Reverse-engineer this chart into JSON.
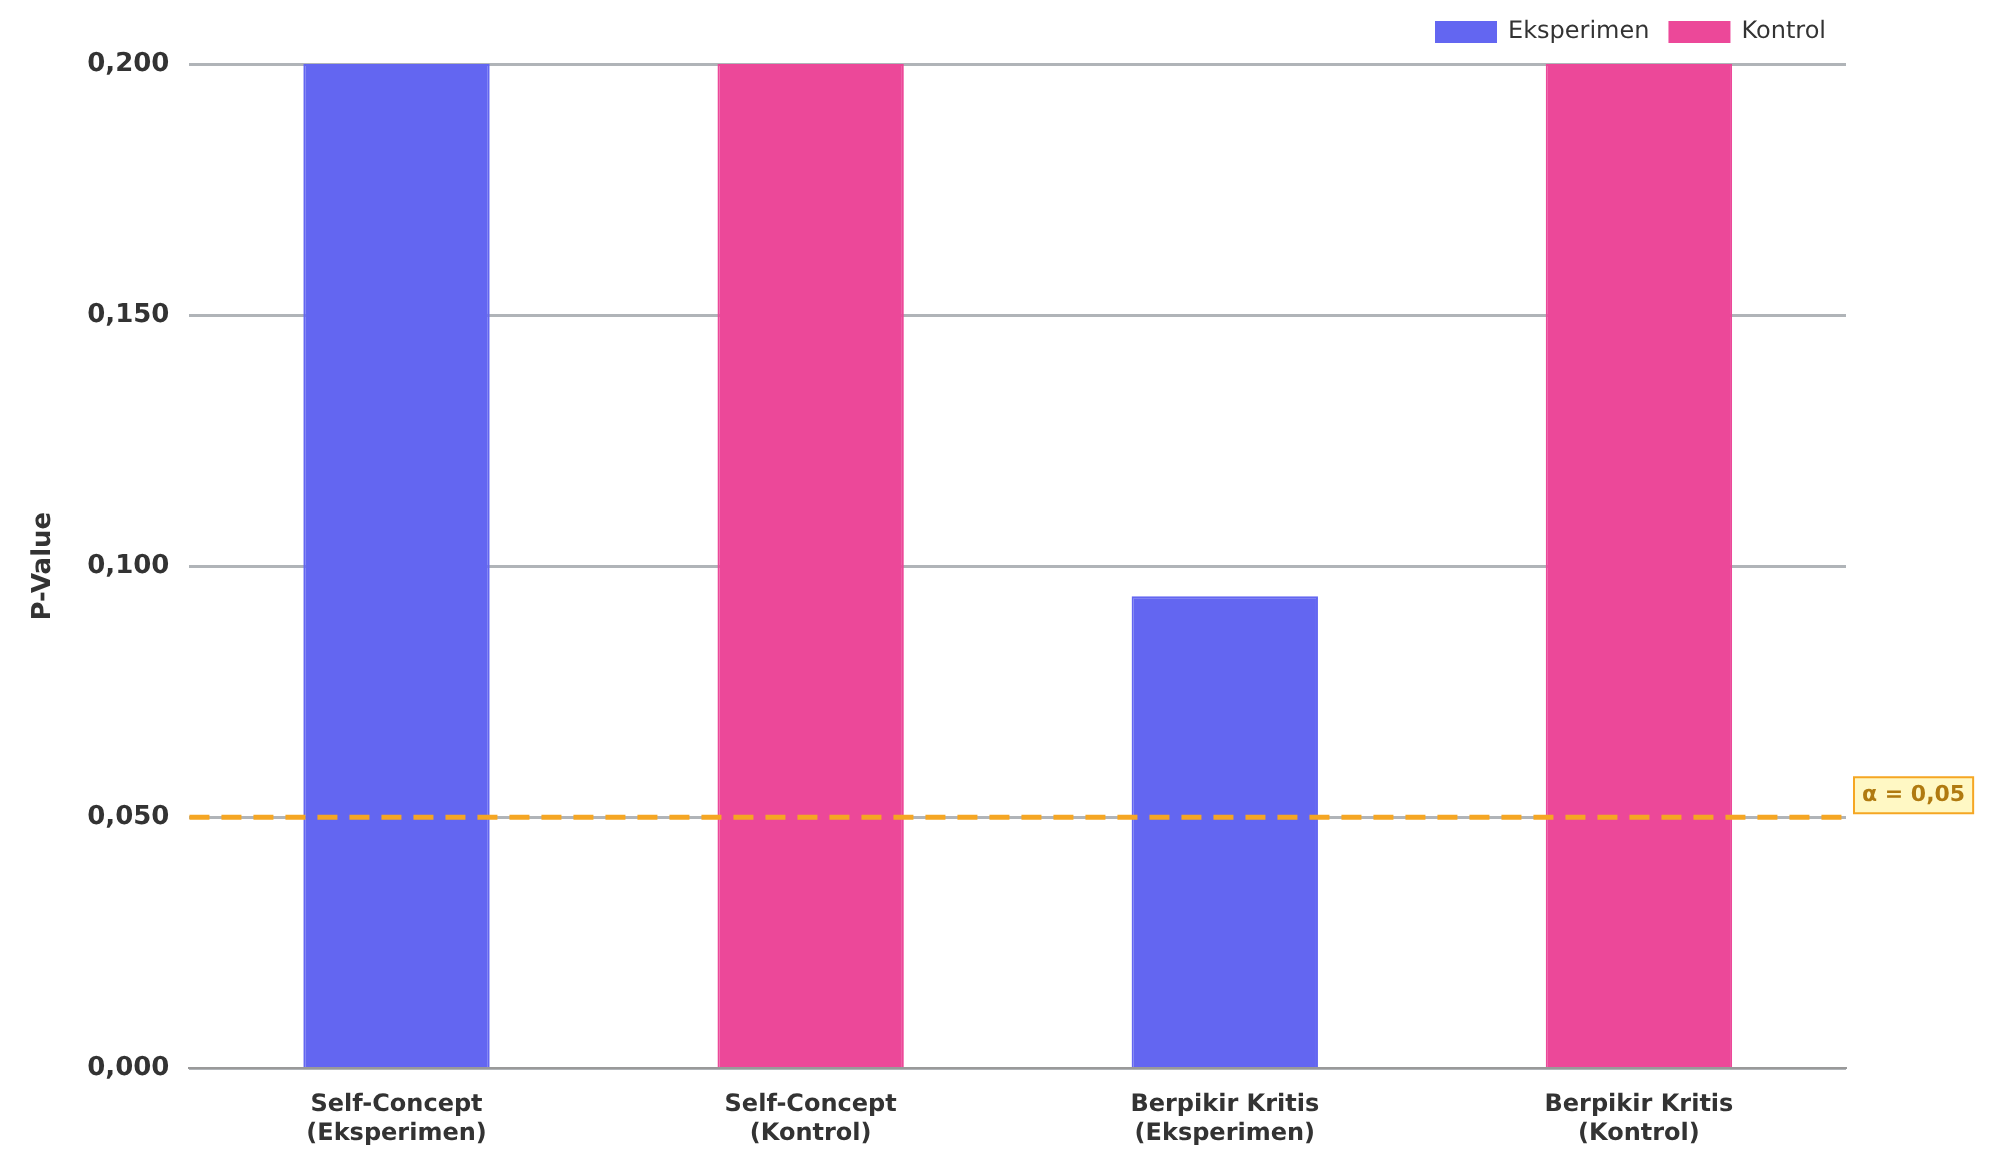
{
  "chart_data": {
    "type": "bar",
    "ylabel": "P-Value",
    "categories": [
      "Self-Concept\n(Eksperimen)",
      "Self-Concept\n(Kontrol)",
      "Berpikir Kritis\n(Eksperimen)",
      "Berpikir Kritis\n(Kontrol)"
    ],
    "series": [
      {
        "name": "Eksperimen",
        "color": "#6366f1",
        "values": [
          0.2,
          null,
          0.094,
          null
        ]
      },
      {
        "name": "Kontrol",
        "color": "#ec4899",
        "values": [
          null,
          0.2,
          null,
          0.2
        ]
      }
    ],
    "ylim": [
      0,
      0.2
    ],
    "yticks": [
      {
        "value": 0,
        "label": "0,000"
      },
      {
        "value": 0.05,
        "label": "0,050"
      },
      {
        "value": 0.1,
        "label": "0,100"
      },
      {
        "value": 0.15,
        "label": "0,150"
      },
      {
        "value": 0.2,
        "label": "0,200"
      }
    ],
    "ref_lines": [
      {
        "axis": "y",
        "value": 0.05,
        "label": "α = 0,05",
        "color": "#f5a623",
        "line_style": "dashed"
      }
    ],
    "grid": "y",
    "legend": "top right"
  }
}
